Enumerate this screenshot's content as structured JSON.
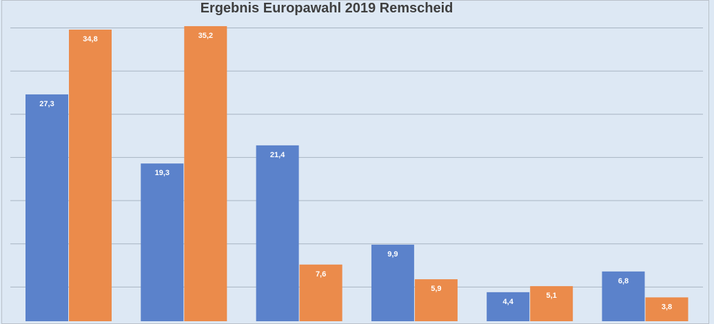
{
  "chart_data": {
    "type": "bar",
    "title": "Ergebnis Europawahl 2019 Remscheid",
    "categories": [
      "",
      "",
      "",
      "",
      "",
      ""
    ],
    "series": [
      {
        "values": [
          27.3,
          19.3,
          21.4,
          9.9,
          4.4,
          6.8
        ],
        "color": "#5b82cb"
      },
      {
        "values": [
          34.8,
          35.2,
          7.6,
          5.9,
          5.1,
          3.8
        ],
        "color": "#eb8b4b"
      }
    ],
    "data_labels": [
      [
        "27,3",
        "19,3",
        "21,4",
        "9,9",
        "4,4",
        "6,8"
      ],
      [
        "34,8",
        "35,2",
        "7,6",
        "5,9",
        "5,1",
        "3,8"
      ]
    ],
    "gridlines": [
      5,
      10,
      15,
      20,
      25,
      30,
      35
    ],
    "grid": true,
    "background": "#dde8f4",
    "gridline_color": "#a7b3c2"
  }
}
